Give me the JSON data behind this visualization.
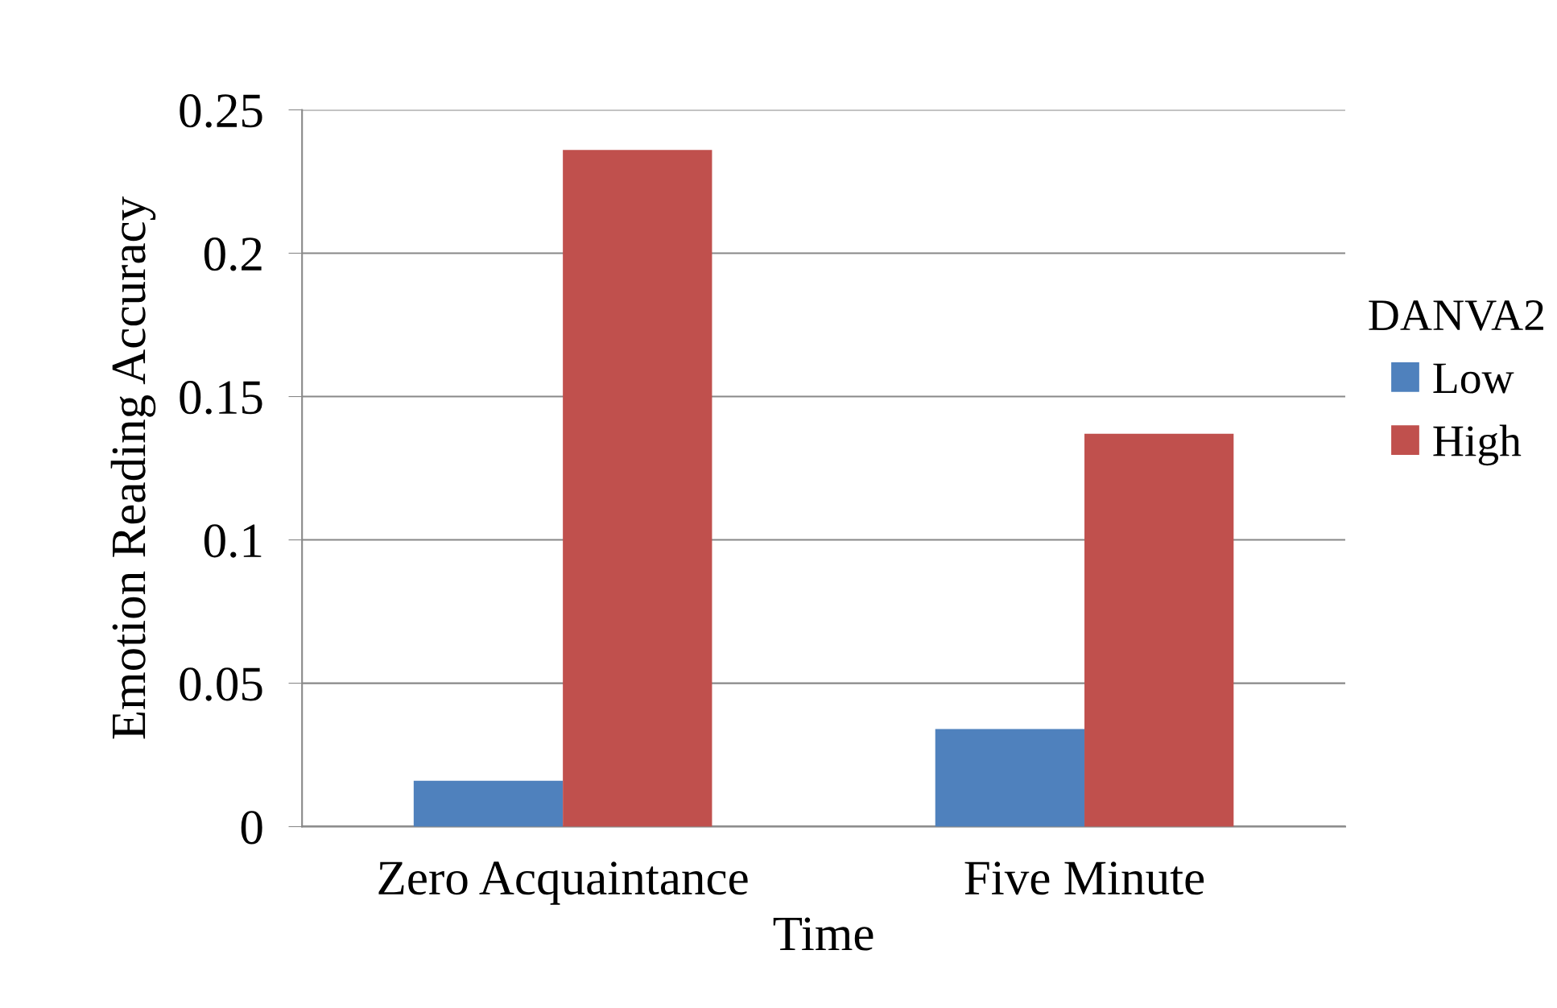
{
  "chart_data": {
    "type": "bar",
    "xlabel": "Time",
    "ylabel": "Emotion Reading Accuracy",
    "legend_title": "DANVA2",
    "categories": [
      "Zero Acquaintance",
      "Five Minute"
    ],
    "series": [
      {
        "name": "Low",
        "color": "#4f81bd",
        "values": [
          0.016,
          0.034
        ]
      },
      {
        "name": "High",
        "color": "#c0504d",
        "values": [
          0.236,
          0.137
        ]
      }
    ],
    "ylim": [
      0,
      0.25
    ],
    "yticks": [
      0,
      0.05,
      0.1,
      0.15,
      0.2,
      0.25
    ],
    "grid": "y",
    "legend": "right"
  }
}
